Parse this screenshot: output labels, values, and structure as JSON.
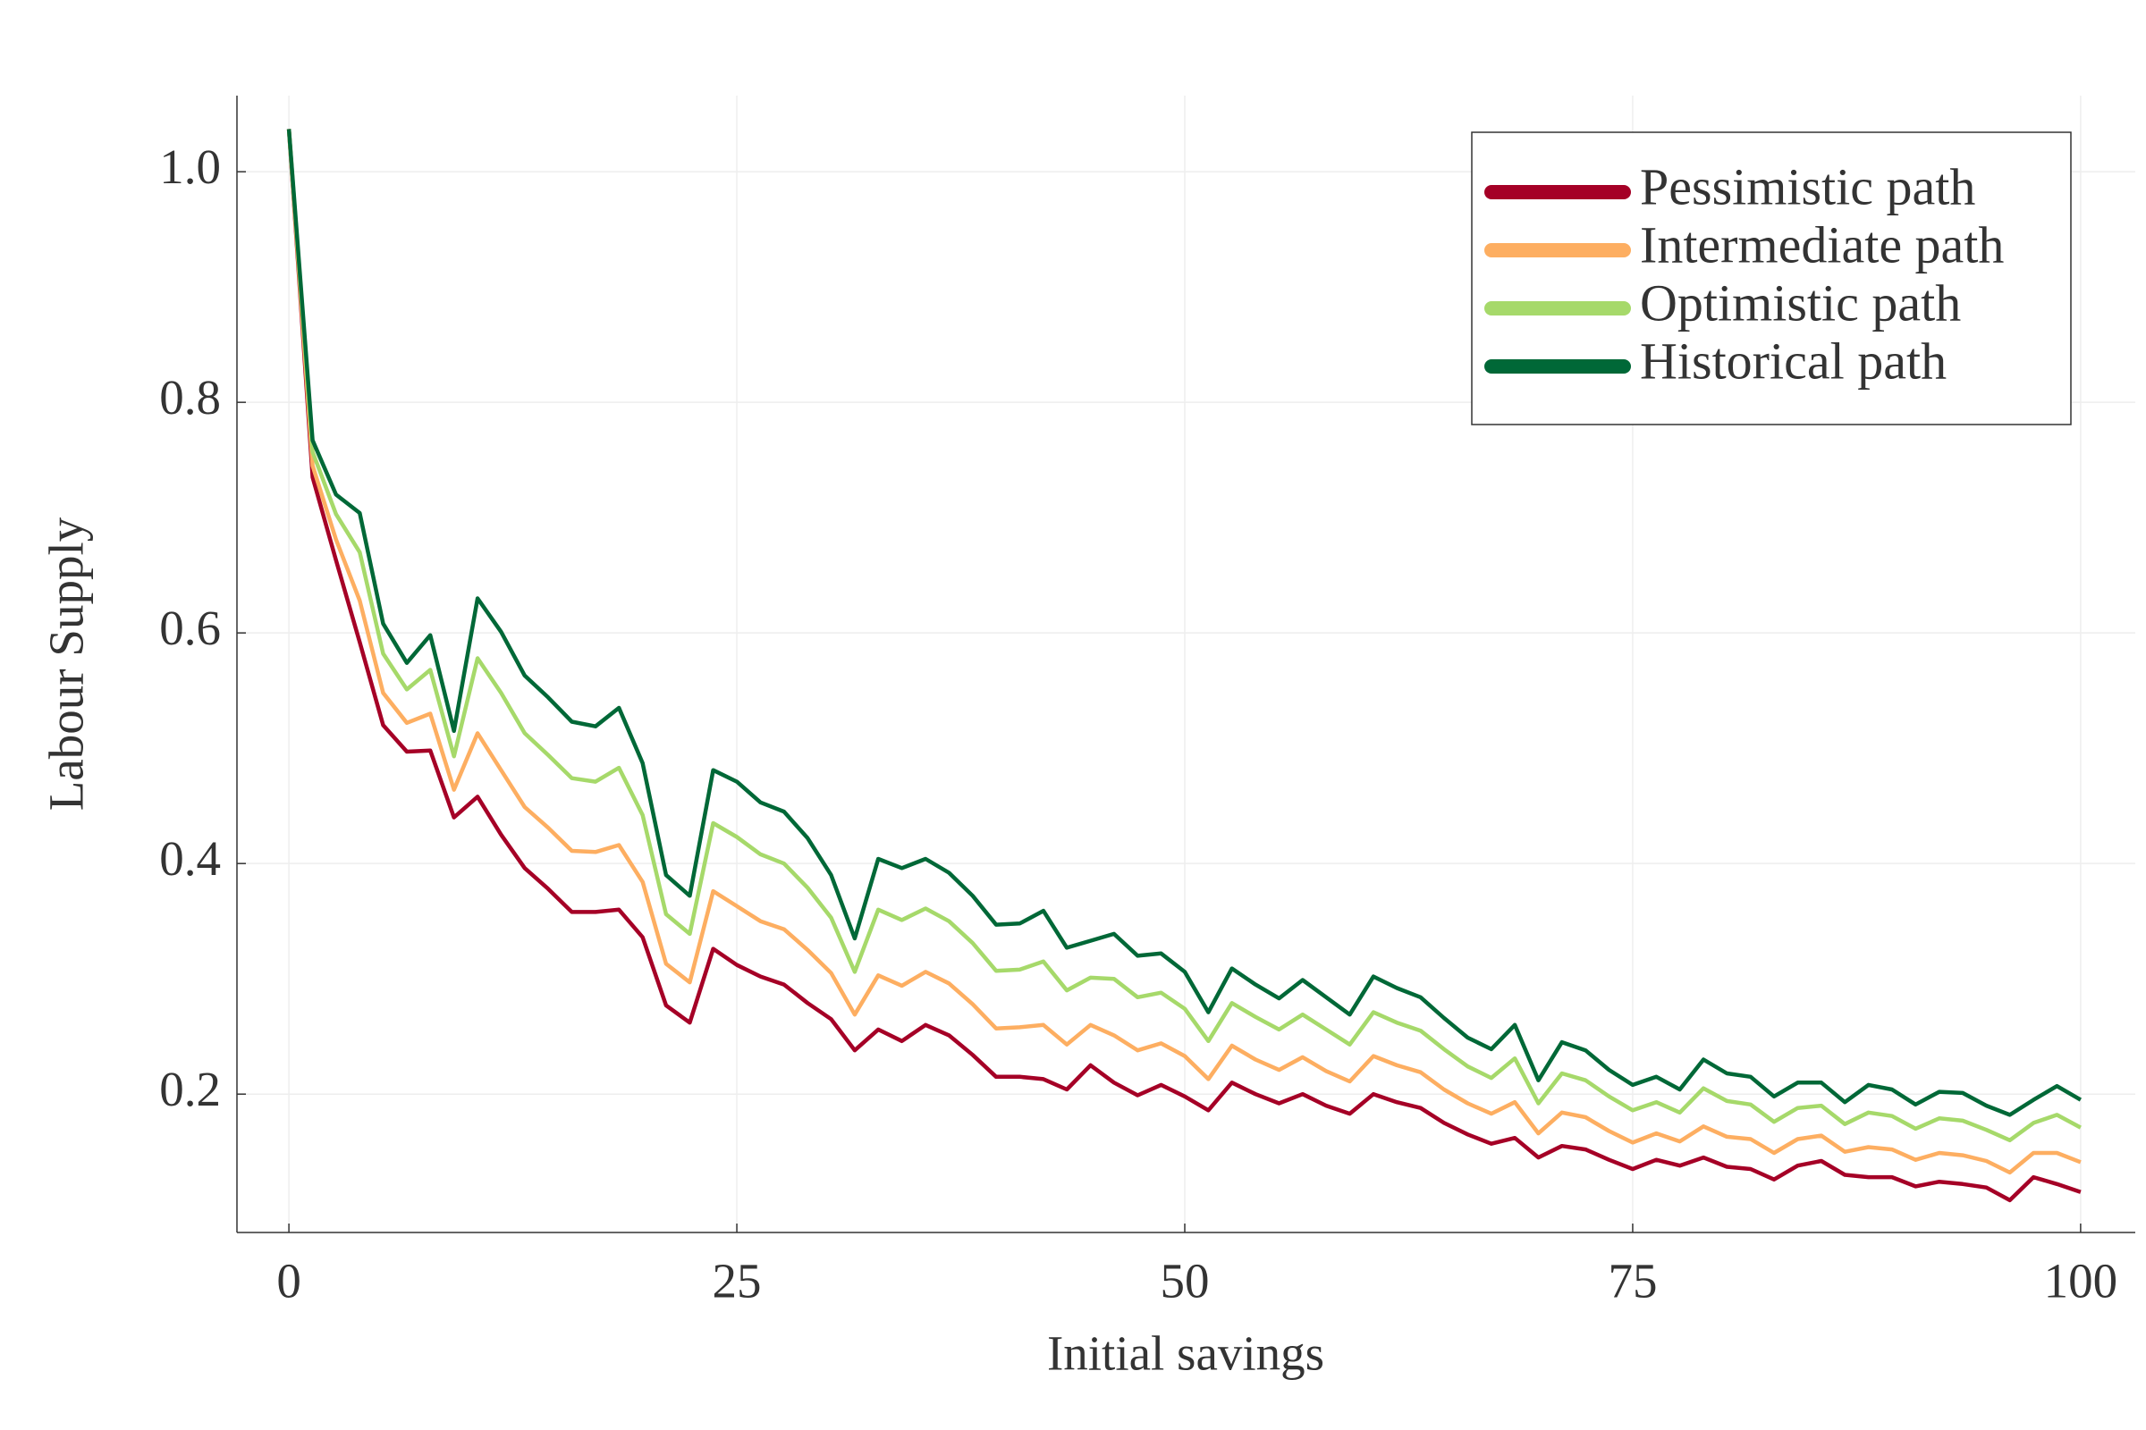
{
  "chart_data": {
    "type": "line",
    "xlabel": "Initial savings",
    "ylabel": "Labour Supply",
    "x": [
      0,
      1.32,
      2.63,
      3.95,
      5.26,
      6.58,
      7.89,
      9.21,
      10.53,
      11.84,
      13.16,
      14.47,
      15.79,
      17.11,
      18.42,
      19.74,
      21.05,
      22.37,
      23.68,
      25,
      26.32,
      27.63,
      28.95,
      30.26,
      31.58,
      32.89,
      34.21,
      35.53,
      36.84,
      38.16,
      39.47,
      40.79,
      42.11,
      43.42,
      44.74,
      46.05,
      47.37,
      48.68,
      50,
      51.32,
      52.63,
      53.95,
      55.26,
      56.58,
      57.89,
      59.21,
      60.53,
      61.84,
      63.16,
      64.47,
      65.79,
      67.11,
      68.42,
      69.74,
      71.05,
      72.37,
      73.68,
      75,
      76.32,
      77.63,
      78.95,
      80.26,
      81.58,
      82.89,
      84.21,
      85.53,
      86.84,
      88.16,
      89.47,
      90.79,
      92.11,
      93.42,
      94.74,
      96.05,
      97.37,
      98.68,
      100
    ],
    "series": [
      {
        "name": "Pessimistic path",
        "color": "#a50026",
        "values": [
          1.037,
          0.735,
          0.663,
          0.592,
          0.52,
          0.497,
          0.498,
          0.44,
          0.458,
          0.425,
          0.396,
          0.378,
          0.358,
          0.358,
          0.36,
          0.336,
          0.277,
          0.262,
          0.326,
          0.312,
          0.302,
          0.295,
          0.279,
          0.265,
          0.238,
          0.256,
          0.246,
          0.26,
          0.251,
          0.234,
          0.215,
          0.215,
          0.213,
          0.204,
          0.225,
          0.21,
          0.199,
          0.208,
          0.198,
          0.186,
          0.21,
          0.2,
          0.192,
          0.2,
          0.19,
          0.183,
          0.2,
          0.193,
          0.188,
          0.175,
          0.165,
          0.157,
          0.162,
          0.145,
          0.155,
          0.152,
          0.143,
          0.135,
          0.143,
          0.138,
          0.145,
          0.137,
          0.135,
          0.126,
          0.138,
          0.142,
          0.13,
          0.128,
          0.128,
          0.12,
          0.124,
          0.122,
          0.119,
          0.108,
          0.128,
          0.122,
          0.115
        ]
      },
      {
        "name": "Intermediate path",
        "color": "#fdae61",
        "values": [
          1.037,
          0.745,
          0.681,
          0.628,
          0.548,
          0.522,
          0.53,
          0.464,
          0.513,
          0.481,
          0.449,
          0.431,
          0.411,
          0.41,
          0.416,
          0.384,
          0.313,
          0.297,
          0.376,
          0.363,
          0.35,
          0.343,
          0.325,
          0.305,
          0.269,
          0.303,
          0.294,
          0.306,
          0.296,
          0.278,
          0.257,
          0.258,
          0.26,
          0.243,
          0.26,
          0.251,
          0.238,
          0.244,
          0.233,
          0.213,
          0.242,
          0.23,
          0.221,
          0.232,
          0.22,
          0.211,
          0.233,
          0.225,
          0.219,
          0.204,
          0.192,
          0.183,
          0.193,
          0.166,
          0.184,
          0.18,
          0.168,
          0.158,
          0.166,
          0.159,
          0.172,
          0.163,
          0.161,
          0.149,
          0.161,
          0.164,
          0.15,
          0.154,
          0.152,
          0.143,
          0.149,
          0.147,
          0.142,
          0.132,
          0.149,
          0.149,
          0.141
        ]
      },
      {
        "name": "Optimistic path",
        "color": "#a6d96a",
        "values": [
          1.037,
          0.757,
          0.703,
          0.67,
          0.582,
          0.551,
          0.568,
          0.493,
          0.578,
          0.548,
          0.513,
          0.494,
          0.474,
          0.471,
          0.483,
          0.442,
          0.356,
          0.339,
          0.435,
          0.423,
          0.408,
          0.4,
          0.379,
          0.353,
          0.306,
          0.36,
          0.351,
          0.361,
          0.35,
          0.331,
          0.307,
          0.308,
          0.315,
          0.29,
          0.301,
          0.3,
          0.284,
          0.288,
          0.274,
          0.246,
          0.279,
          0.267,
          0.256,
          0.269,
          0.256,
          0.243,
          0.271,
          0.262,
          0.255,
          0.239,
          0.224,
          0.214,
          0.231,
          0.192,
          0.218,
          0.212,
          0.198,
          0.186,
          0.193,
          0.184,
          0.205,
          0.194,
          0.191,
          0.176,
          0.188,
          0.19,
          0.174,
          0.184,
          0.181,
          0.17,
          0.179,
          0.177,
          0.169,
          0.16,
          0.175,
          0.182,
          0.171
        ]
      },
      {
        "name": "Historical path",
        "color": "#006837",
        "values": [
          1.037,
          0.767,
          0.72,
          0.704,
          0.608,
          0.574,
          0.598,
          0.515,
          0.63,
          0.601,
          0.563,
          0.544,
          0.523,
          0.519,
          0.535,
          0.487,
          0.39,
          0.372,
          0.481,
          0.471,
          0.453,
          0.445,
          0.422,
          0.39,
          0.335,
          0.404,
          0.396,
          0.404,
          0.392,
          0.372,
          0.347,
          0.348,
          0.359,
          0.327,
          0.333,
          0.339,
          0.32,
          0.322,
          0.306,
          0.271,
          0.309,
          0.295,
          0.283,
          0.299,
          0.284,
          0.269,
          0.302,
          0.292,
          0.284,
          0.266,
          0.249,
          0.239,
          0.26,
          0.212,
          0.245,
          0.238,
          0.221,
          0.208,
          0.215,
          0.204,
          0.23,
          0.218,
          0.215,
          0.198,
          0.21,
          0.21,
          0.193,
          0.208,
          0.204,
          0.191,
          0.202,
          0.201,
          0.19,
          0.182,
          0.195,
          0.207,
          0.195
        ]
      }
    ],
    "xlim": [
      -2.9,
      103.05
    ],
    "xticks": [
      0,
      25,
      50,
      75,
      100
    ],
    "ylim": [
      0.08,
      1.066
    ],
    "yticks": [
      0.2,
      0.4,
      0.6,
      0.8,
      {
        "value": 1,
        "label": "1.0"
      }
    ],
    "grid": true,
    "legend": "upper right"
  }
}
